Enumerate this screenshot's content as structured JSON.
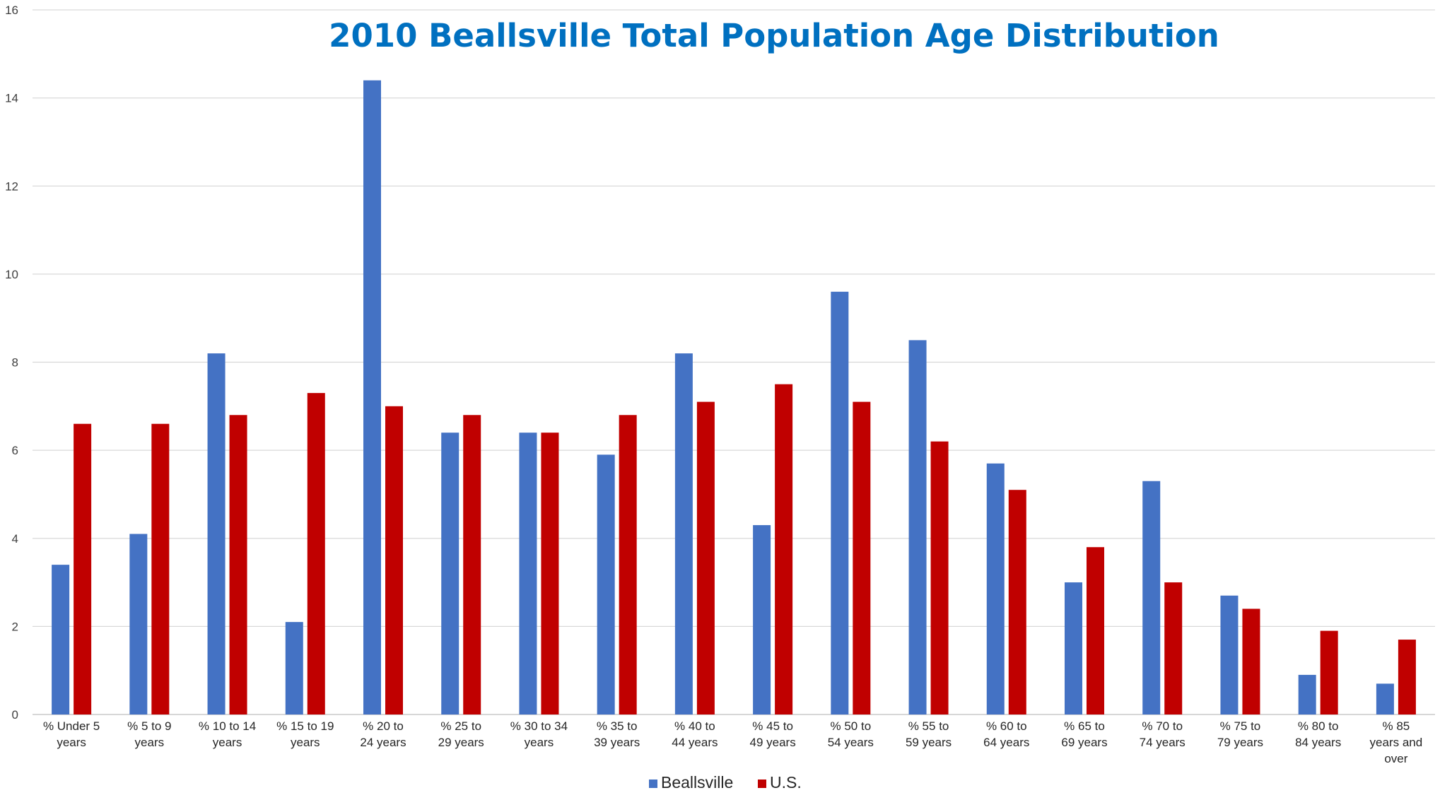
{
  "chart_data": {
    "type": "bar",
    "title": "2010 Beallsville Total Population Age Distribution",
    "xlabel": "",
    "ylabel": "",
    "ylim": [
      0,
      16
    ],
    "yticks": [
      0,
      2,
      4,
      6,
      8,
      10,
      12,
      14,
      16
    ],
    "grid": true,
    "legend_position": "bottom",
    "categories": [
      [
        "% Under 5",
        "years"
      ],
      [
        "% 5 to 9",
        "years"
      ],
      [
        "% 10 to 14",
        "years"
      ],
      [
        "% 15 to 19",
        "years"
      ],
      [
        "% 20 to",
        "24 years"
      ],
      [
        "% 25 to",
        "29 years"
      ],
      [
        "% 30 to 34",
        "years"
      ],
      [
        "% 35 to",
        "39 years"
      ],
      [
        "% 40 to",
        "44 years"
      ],
      [
        "% 45 to",
        "49 years"
      ],
      [
        "% 50 to",
        "54 years"
      ],
      [
        "% 55 to",
        "59 years"
      ],
      [
        "% 60 to",
        "64 years"
      ],
      [
        "% 65 to",
        "69 years"
      ],
      [
        "% 70 to",
        "74 years"
      ],
      [
        "% 75 to",
        "79 years"
      ],
      [
        "% 80 to",
        "84 years"
      ],
      [
        "% 85",
        "years and",
        "over"
      ]
    ],
    "series": [
      {
        "name": "Beallsville",
        "color": "#4472C4",
        "values": [
          3.4,
          4.1,
          8.2,
          2.1,
          14.4,
          6.4,
          6.4,
          5.9,
          8.2,
          4.3,
          9.6,
          8.5,
          5.7,
          3.0,
          5.3,
          2.7,
          0.9,
          0.7
        ]
      },
      {
        "name": "U.S.",
        "color": "#C00000",
        "values": [
          6.6,
          6.6,
          6.8,
          7.3,
          7.0,
          6.8,
          6.4,
          6.8,
          7.1,
          7.5,
          7.1,
          6.2,
          5.1,
          3.8,
          3.0,
          2.4,
          1.9,
          1.7
        ]
      }
    ],
    "colors": {
      "title": "#0070C0",
      "gridline": "#D9D9D9",
      "axis_text": "#404040"
    }
  }
}
